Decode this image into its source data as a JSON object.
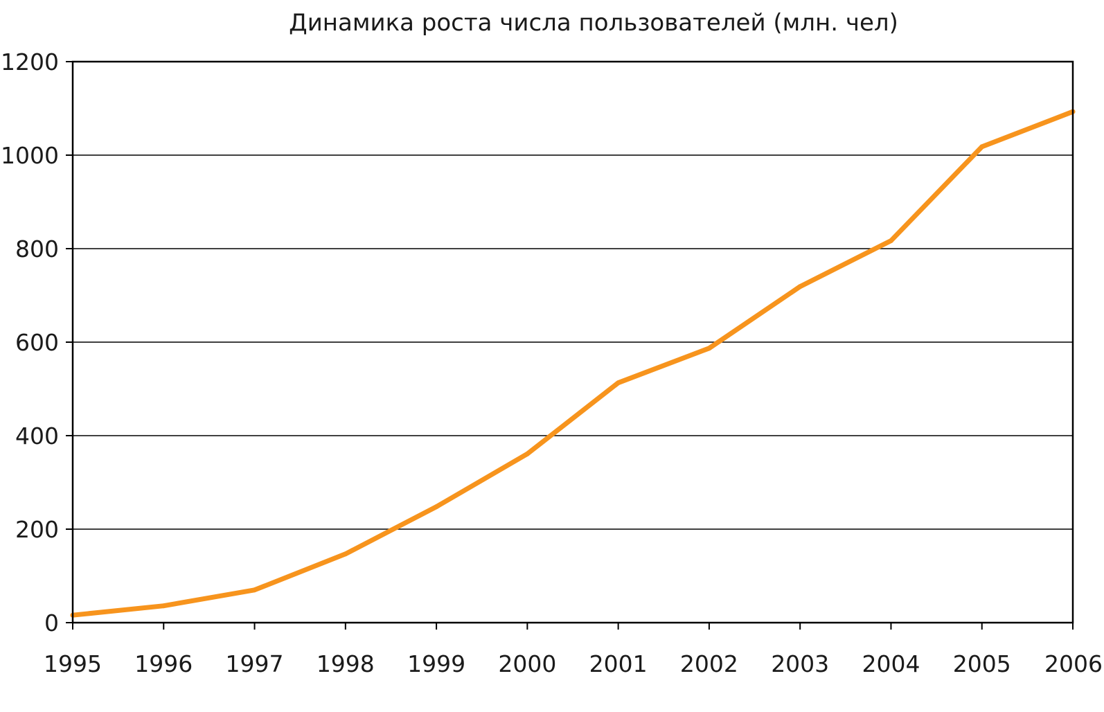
{
  "chart_data": {
    "type": "line",
    "title": "Динамика роста числа пользователей (млн. чел)",
    "xlabel": "",
    "ylabel": "",
    "x": [
      "1995",
      "1996",
      "1997",
      "1998",
      "1999",
      "2000",
      "2001",
      "2002",
      "2003",
      "2004",
      "2005",
      "2006"
    ],
    "series": [
      {
        "values": [
          16,
          36,
          70,
          147,
          248,
          361,
          513,
          587,
          719,
          817,
          1018,
          1093
        ],
        "color": "#F7941D"
      }
    ],
    "ylim": [
      0,
      1200
    ],
    "yticks": [
      0,
      200,
      400,
      600,
      800,
      1000,
      1200
    ],
    "grid": true,
    "legend": "none"
  }
}
